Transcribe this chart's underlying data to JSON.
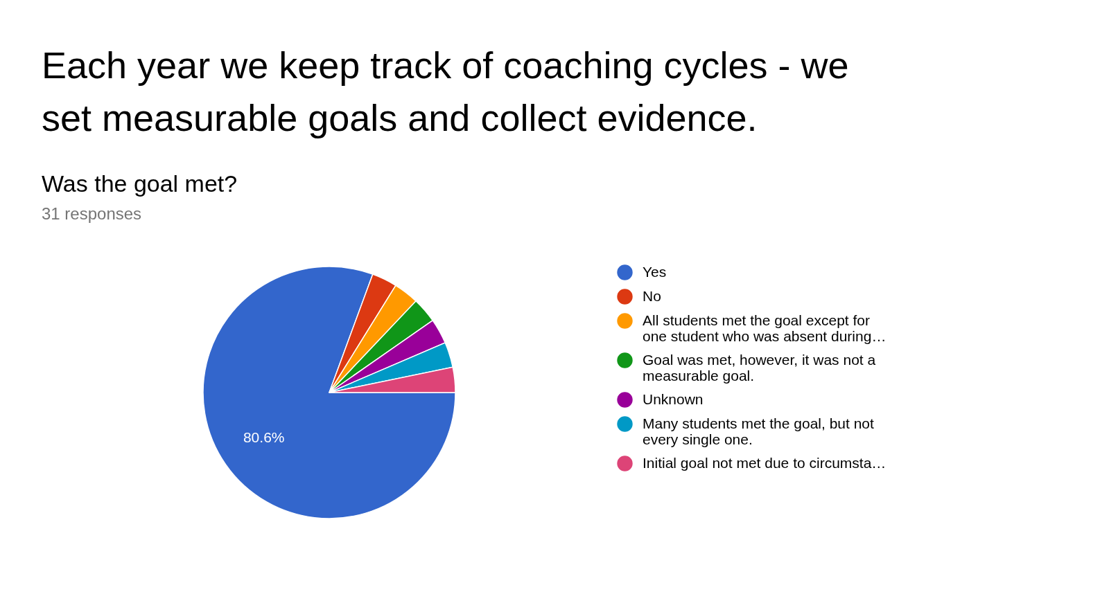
{
  "chart_data": {
    "type": "pie",
    "title": "Was the goal met?",
    "subtitle": "31 responses",
    "annotations": [
      "Each year we keep track of coaching cycles -  we set measurable goals and collect evidence."
    ],
    "categories": [
      "Yes",
      "No",
      "All students met the goal except for one student who was absent during…",
      "Goal was met, however, it was not a measurable goal.",
      "Unknown",
      "Many students met the goal, but not every single one.",
      "Initial goal not met due to circumsta…"
    ],
    "values": [
      80.6,
      3.233,
      3.233,
      3.233,
      3.233,
      3.233,
      3.233
    ],
    "colors": [
      "#3366cc",
      "#dc3912",
      "#ff9900",
      "#109618",
      "#990099",
      "#0099c6",
      "#dd4477"
    ],
    "value_labels": [
      "80.6%",
      null,
      null,
      null,
      null,
      null,
      null
    ],
    "legend": "right"
  }
}
